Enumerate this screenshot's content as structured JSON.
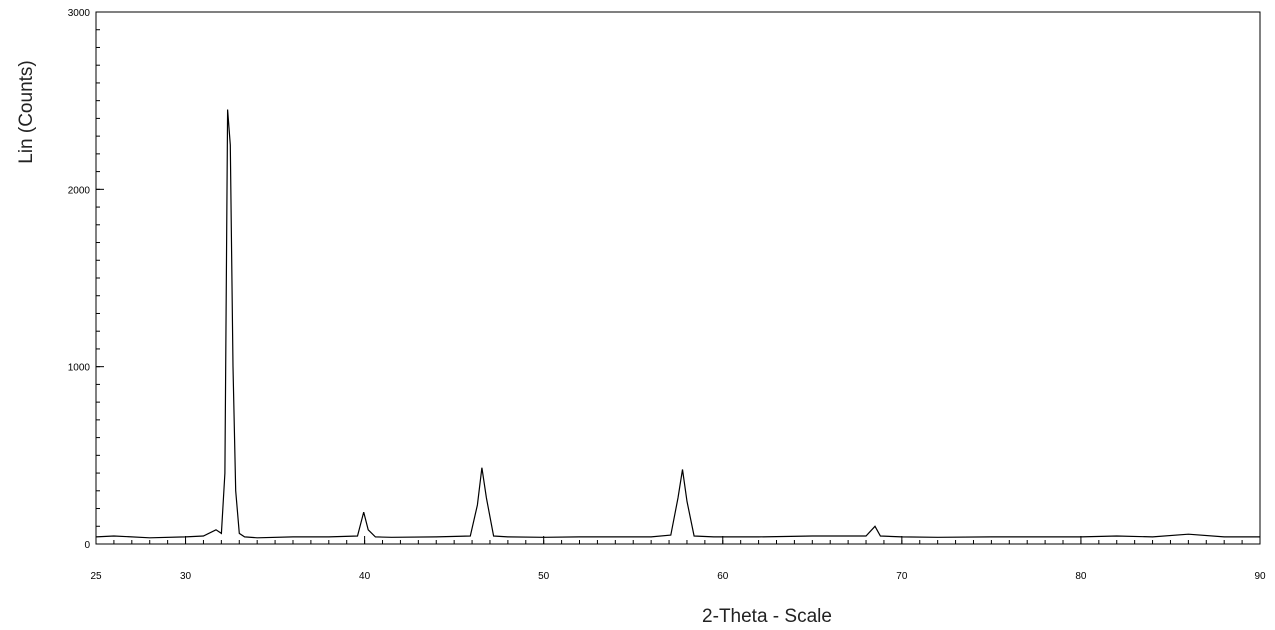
{
  "chart_data": {
    "type": "line",
    "title": "",
    "xlabel": "2-Theta - Scale",
    "ylabel": "Lin (Counts)",
    "xlim": [
      25,
      90
    ],
    "ylim": [
      0,
      3000
    ],
    "x_ticks": [
      25,
      30,
      40,
      50,
      60,
      70,
      80,
      90
    ],
    "y_ticks": [
      0,
      1000,
      2000,
      3000
    ],
    "grid": false,
    "legend": "none",
    "line_color": "#000000",
    "series": [
      {
        "x": [
          25,
          26,
          28,
          30,
          31,
          31.7,
          32.0,
          32.2,
          32.35,
          32.5,
          32.65,
          32.8,
          33.0,
          33.3,
          34,
          36,
          38,
          39.6,
          39.95,
          40.2,
          40.6,
          41.5,
          44,
          45.9,
          46.3,
          46.55,
          46.8,
          47.2,
          48,
          50,
          52,
          54,
          56,
          57.1,
          57.5,
          57.75,
          58.0,
          58.4,
          59.5,
          62,
          65,
          68,
          68.5,
          68.8,
          70,
          72,
          75,
          78,
          80,
          82,
          84,
          86,
          88,
          90
        ],
        "y": [
          40,
          45,
          35,
          40,
          45,
          80,
          60,
          400,
          2450,
          2250,
          1000,
          300,
          60,
          40,
          35,
          40,
          40,
          45,
          180,
          80,
          40,
          38,
          40,
          45,
          220,
          430,
          260,
          45,
          40,
          38,
          40,
          40,
          40,
          50,
          260,
          420,
          240,
          45,
          40,
          40,
          45,
          45,
          100,
          45,
          40,
          38,
          40,
          40,
          40,
          45,
          40,
          55,
          40,
          40
        ]
      }
    ]
  }
}
